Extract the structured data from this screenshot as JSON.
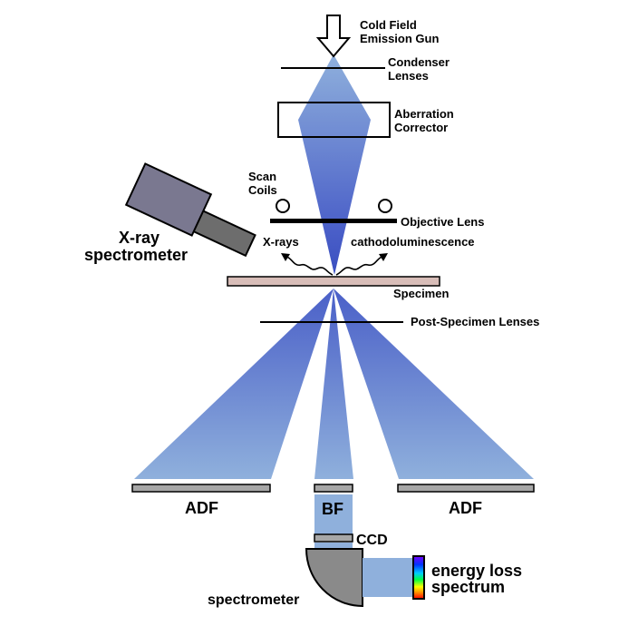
{
  "labels": {
    "gun_line1": "Cold Field",
    "gun_line2": "Emission Gun",
    "condenser_line1": "Condenser",
    "condenser_line2": "Lenses",
    "aberration_line1": "Aberration",
    "aberration_line2": "Corrector",
    "scan_line1": "Scan",
    "scan_line2": "Coils",
    "objective": "Objective Lens",
    "xrays": "X-rays",
    "cathodo": "cathodoluminescence",
    "xray_spec_line1": "X-ray",
    "xray_spec_line2": "spectrometer",
    "specimen": "Specimen",
    "post_specimen": "Post-Specimen Lenses",
    "adf_left": "ADF",
    "bf": "BF",
    "adf_right": "ADF",
    "ccd": "CCD",
    "spectrometer": "spectrometer",
    "eels_line1": "energy loss",
    "eels_line2": "spectrum"
  },
  "colors": {
    "beam_dark": "#4a5fc8",
    "beam_light": "#8fb0dc",
    "specimen_fill": "#d8bdb8",
    "detector_fill": "#a7a7a7",
    "spectrometer_fill": "#8a8a8a",
    "xray_body": "#7a7890",
    "xray_tube": "#6d6d6d"
  }
}
